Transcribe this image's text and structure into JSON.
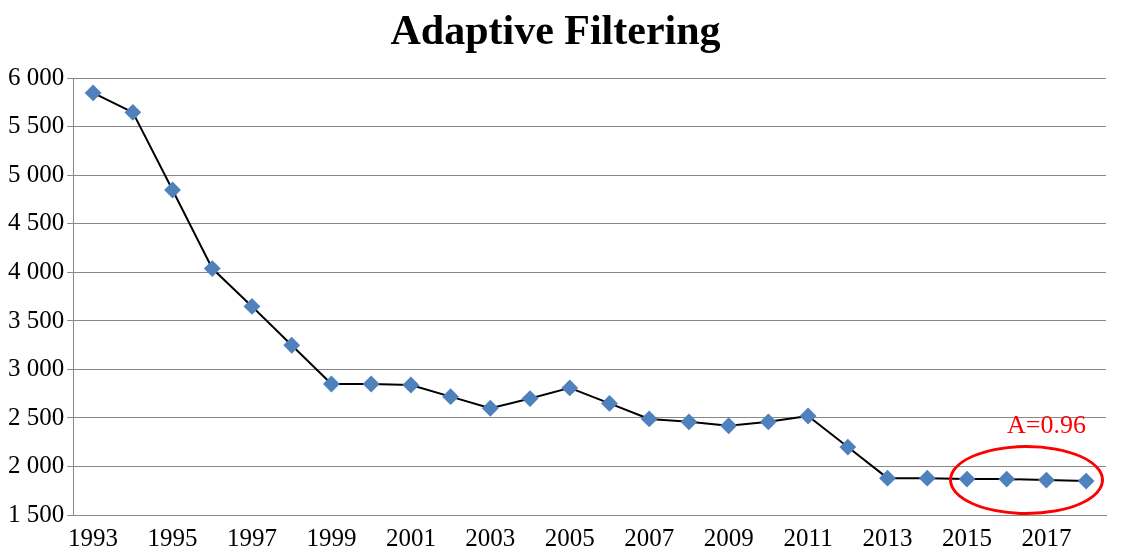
{
  "chart_data": {
    "type": "line",
    "title": "Adaptive Filtering",
    "categories": [
      "1993",
      null,
      "1995",
      null,
      "1997",
      null,
      "1999",
      null,
      "2001",
      null,
      "2003",
      null,
      "2005",
      null,
      "2007",
      null,
      "2009",
      null,
      "2011",
      null,
      "2013",
      null,
      "2015",
      null,
      "2017",
      null
    ],
    "series": [
      {
        "color": "#4f81bd",
        "values": [
          5850,
          5650,
          4850,
          4040,
          3650,
          3250,
          2850,
          2850,
          2840,
          2720,
          2600,
          2700,
          2810,
          2650,
          2490,
          2460,
          2420,
          2460,
          2520,
          2200,
          1880,
          1880,
          1870,
          1870,
          1860,
          1850
        ]
      }
    ],
    "ylim": [
      1500,
      6000
    ],
    "yticks": [
      {
        "value": 1500,
        "label": "1 500"
      },
      {
        "value": 2000,
        "label": "2 000"
      },
      {
        "value": 2500,
        "label": "2 500"
      },
      {
        "value": 3000,
        "label": "3 000"
      },
      {
        "value": 3500,
        "label": "3 500"
      },
      {
        "value": 4000,
        "label": "4 000"
      },
      {
        "value": 4500,
        "label": "4 500"
      },
      {
        "value": 5000,
        "label": "5 000"
      },
      {
        "value": 5500,
        "label": "5 500"
      },
      {
        "value": 6000,
        "label": "6 000"
      }
    ],
    "grid": "y",
    "legend": false,
    "marker": "diamond",
    "line_style": "solid",
    "annotations": [
      "A=0.96"
    ]
  }
}
